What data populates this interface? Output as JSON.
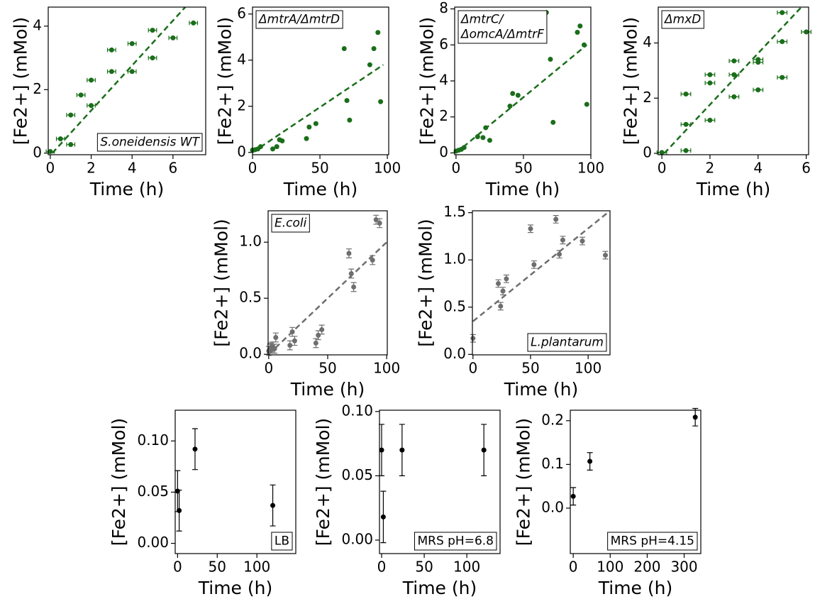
{
  "chart_data": [
    {
      "type": "scatter",
      "annotation": [
        "S.oneidensis WT"
      ],
      "annotation_loc": "lower right",
      "annotation_italic": true,
      "xlabel": "Time (h)",
      "ylabel": "[Fe2+] (mMol)",
      "color": "#1a6e1a",
      "x": [
        0,
        0.5,
        1,
        1,
        1.5,
        2,
        2,
        3,
        3,
        4,
        4,
        5,
        5,
        6,
        7
      ],
      "y": [
        0.05,
        0.45,
        1.2,
        0.27,
        1.83,
        2.3,
        1.5,
        3.25,
        2.57,
        3.45,
        2.57,
        3.87,
        3.0,
        3.63,
        4.1
      ],
      "xerr": 0.2,
      "fit": {
        "x": [
          0.1,
          6.6
        ],
        "y": [
          0,
          4.6
        ]
      },
      "xlim": [
        -0.1,
        7.6
      ],
      "ylim": [
        -0.05,
        4.6
      ],
      "xticks": [
        0,
        2,
        4,
        6
      ],
      "yticks": [
        0,
        2,
        4
      ]
    },
    {
      "type": "scatter",
      "annotation": [
        "ΔmtrA/ΔmtrD"
      ],
      "annotation_loc": "upper left",
      "annotation_italic": true,
      "xlabel": "Time (h)",
      "ylabel": "[Fe2+] (mMol)",
      "color": "#1a6e1a",
      "x": [
        0,
        2,
        4,
        6,
        15,
        18,
        20,
        22,
        40,
        42,
        47,
        68,
        70,
        72,
        87,
        90,
        93,
        95
      ],
      "y": [
        0.1,
        0.12,
        0.15,
        0.25,
        0.15,
        0.25,
        0.55,
        0.5,
        0.6,
        1.1,
        1.25,
        4.5,
        2.25,
        1.4,
        3.8,
        4.5,
        5.2,
        2.2
      ],
      "fit": {
        "x": [
          0,
          97
        ],
        "y": [
          0,
          3.8
        ]
      },
      "xlim": [
        0,
        101
      ],
      "ylim": [
        -0.1,
        6.3
      ],
      "xticks": [
        0,
        50,
        100
      ],
      "yticks": [
        0,
        2,
        4,
        6
      ]
    },
    {
      "type": "scatter",
      "annotation": [
        "ΔmtrC/",
        "ΔomcA/ΔmtrF"
      ],
      "annotation_loc": "upper left",
      "annotation_italic": true,
      "xlabel": "Time (h)",
      "ylabel": "[Fe2+] (mMol)",
      "color": "#1a6e1a",
      "x": [
        0,
        2,
        4,
        6,
        16,
        20,
        22,
        25,
        40,
        42,
        46,
        67,
        70,
        72,
        90,
        92,
        95,
        97
      ],
      "y": [
        0.1,
        0.15,
        0.2,
        0.3,
        0.9,
        0.85,
        1.4,
        0.7,
        2.6,
        3.3,
        3.2,
        7.8,
        5.2,
        1.7,
        6.7,
        7.05,
        6.0,
        2.7
      ],
      "fit": {
        "x": [
          0,
          97
        ],
        "y": [
          0,
          6.0
        ]
      },
      "xlim": [
        -1,
        100
      ],
      "ylim": [
        -0.1,
        8.1
      ],
      "xticks": [
        0,
        50,
        100
      ],
      "yticks": [
        0,
        2,
        4,
        6,
        8
      ]
    },
    {
      "type": "scatter",
      "annotation": [
        "ΔmxD"
      ],
      "annotation_loc": "upper left",
      "annotation_italic": true,
      "xlabel": "Time (h)",
      "ylabel": "[Fe2+] (mMol)",
      "color": "#1a6e1a",
      "x": [
        0,
        1,
        1,
        1,
        2,
        2,
        2,
        3,
        3,
        3,
        4,
        4,
        4,
        5,
        5,
        5,
        6
      ],
      "y": [
        0.03,
        0.1,
        1.05,
        2.15,
        1.2,
        2.55,
        2.85,
        2.05,
        2.85,
        3.35,
        2.3,
        3.3,
        3.4,
        2.75,
        4.05,
        5.1,
        4.4
      ],
      "xerr": 0.2,
      "fit": {
        "x": [
          0.1,
          5.8
        ],
        "y": [
          0,
          5.3
        ]
      },
      "xlim": [
        -0.15,
        6.1
      ],
      "ylim": [
        -0.05,
        5.3
      ],
      "xticks": [
        0,
        2,
        4,
        6
      ],
      "yticks": [
        0,
        2,
        4
      ]
    },
    {
      "type": "scatter",
      "annotation": [
        "E.coli"
      ],
      "annotation_loc": "upper left",
      "annotation_italic": true,
      "xlabel": "Time (h)",
      "ylabel": "[Fe2+] (mMol)",
      "color": "#6e6e6e",
      "x": [
        0,
        1,
        2,
        3,
        5,
        6,
        18,
        20,
        22,
        40,
        42,
        45,
        68,
        70,
        72,
        88,
        91,
        94
      ],
      "y": [
        0.03,
        0.05,
        0.06,
        0.07,
        0.05,
        0.15,
        0.08,
        0.2,
        0.12,
        0.1,
        0.17,
        0.22,
        0.9,
        0.72,
        0.6,
        0.84,
        1.2,
        1.17
      ],
      "yerr": 0.04,
      "fit": {
        "x": [
          0,
          100
        ],
        "y": [
          0,
          1.0
        ]
      },
      "xlim": [
        -0.5,
        100.5
      ],
      "ylim": [
        -0.005,
        1.28
      ],
      "xticks": [
        0,
        50,
        100
      ],
      "yticks": [
        {
          "value": 0,
          "label": "0.0"
        },
        {
          "value": 0.5,
          "label": "0.5"
        },
        {
          "value": 1.0,
          "label": "1.0"
        }
      ]
    },
    {
      "type": "scatter",
      "annotation": [
        "L.plantarum"
      ],
      "annotation_loc": "lower right",
      "annotation_italic": true,
      "xlabel": "Time (h)",
      "ylabel": "[Fe2+] (mMol)",
      "color": "#6e6e6e",
      "x": [
        0,
        22,
        24,
        26,
        29,
        50,
        53,
        72,
        75,
        78,
        95,
        115
      ],
      "y": [
        0.17,
        0.75,
        0.51,
        0.67,
        0.8,
        1.33,
        0.95,
        1.43,
        1.06,
        1.21,
        1.2,
        1.05
      ],
      "yerr": 0.04,
      "fit": {
        "x": [
          0,
          119
        ],
        "y": [
          0.35,
          1.52
        ]
      },
      "xlim": [
        -0.5,
        119
      ],
      "ylim": [
        -0.005,
        1.52
      ],
      "xticks": [
        0,
        50,
        100
      ],
      "yticks": [
        {
          "value": 0,
          "label": "0.0"
        },
        {
          "value": 0.5,
          "label": "0.5"
        },
        {
          "value": 1.0,
          "label": "1.0"
        },
        {
          "value": 1.5,
          "label": "1.5"
        }
      ]
    },
    {
      "type": "scatter",
      "annotation": [
        "LB"
      ],
      "annotation_loc": "lower right",
      "annotation_italic": false,
      "xlabel": "Time (h)",
      "ylabel": "[Fe2+] (mMol)",
      "color": "#000000",
      "x": [
        0,
        2,
        22,
        120
      ],
      "y": [
        0.051,
        0.032,
        0.092,
        0.037
      ],
      "yerr": 0.02,
      "xlim": [
        -3,
        149
      ],
      "ylim": [
        -0.01,
        0.13
      ],
      "xticks": [
        0,
        50,
        100
      ],
      "yticks": [
        {
          "value": 0,
          "label": "0.00"
        },
        {
          "value": 0.05,
          "label": "0.05"
        },
        {
          "value": 0.1,
          "label": "0.10"
        }
      ]
    },
    {
      "type": "scatter",
      "annotation": [
        "MRS pH=6.8"
      ],
      "annotation_loc": "lower right",
      "annotation_italic": false,
      "xlabel": "Time (h)",
      "ylabel": "[Fe2+] (mMol)",
      "color": "#000000",
      "x": [
        0,
        2,
        24,
        120
      ],
      "y": [
        0.07,
        0.018,
        0.07,
        0.07
      ],
      "yerr": 0.02,
      "xlim": [
        -2.5,
        139
      ],
      "ylim": [
        -0.0105,
        0.101
      ],
      "xticks": [
        0,
        50,
        100
      ],
      "yticks": [
        {
          "value": 0,
          "label": "0.00"
        },
        {
          "value": 0.05,
          "label": "0.05"
        },
        {
          "value": 0.1,
          "label": "0.10"
        }
      ]
    },
    {
      "type": "scatter",
      "annotation": [
        "MRS pH=4.15"
      ],
      "annotation_loc": "lower right",
      "annotation_italic": false,
      "xlabel": "Time (h)",
      "ylabel": "[Fe2+] (mMol)",
      "color": "#000000",
      "x": [
        0,
        45,
        330
      ],
      "y": [
        0.027,
        0.107,
        0.208
      ],
      "yerr": 0.02,
      "xlim": [
        -8,
        345
      ],
      "ylim": [
        -0.104,
        0.224
      ],
      "xticks": [
        0,
        100,
        200,
        300
      ],
      "yticks": [
        {
          "value": 0,
          "label": "0.0"
        },
        {
          "value": 0.1,
          "label": "0.1"
        },
        {
          "value": 0.2,
          "label": "0.2"
        }
      ]
    }
  ]
}
